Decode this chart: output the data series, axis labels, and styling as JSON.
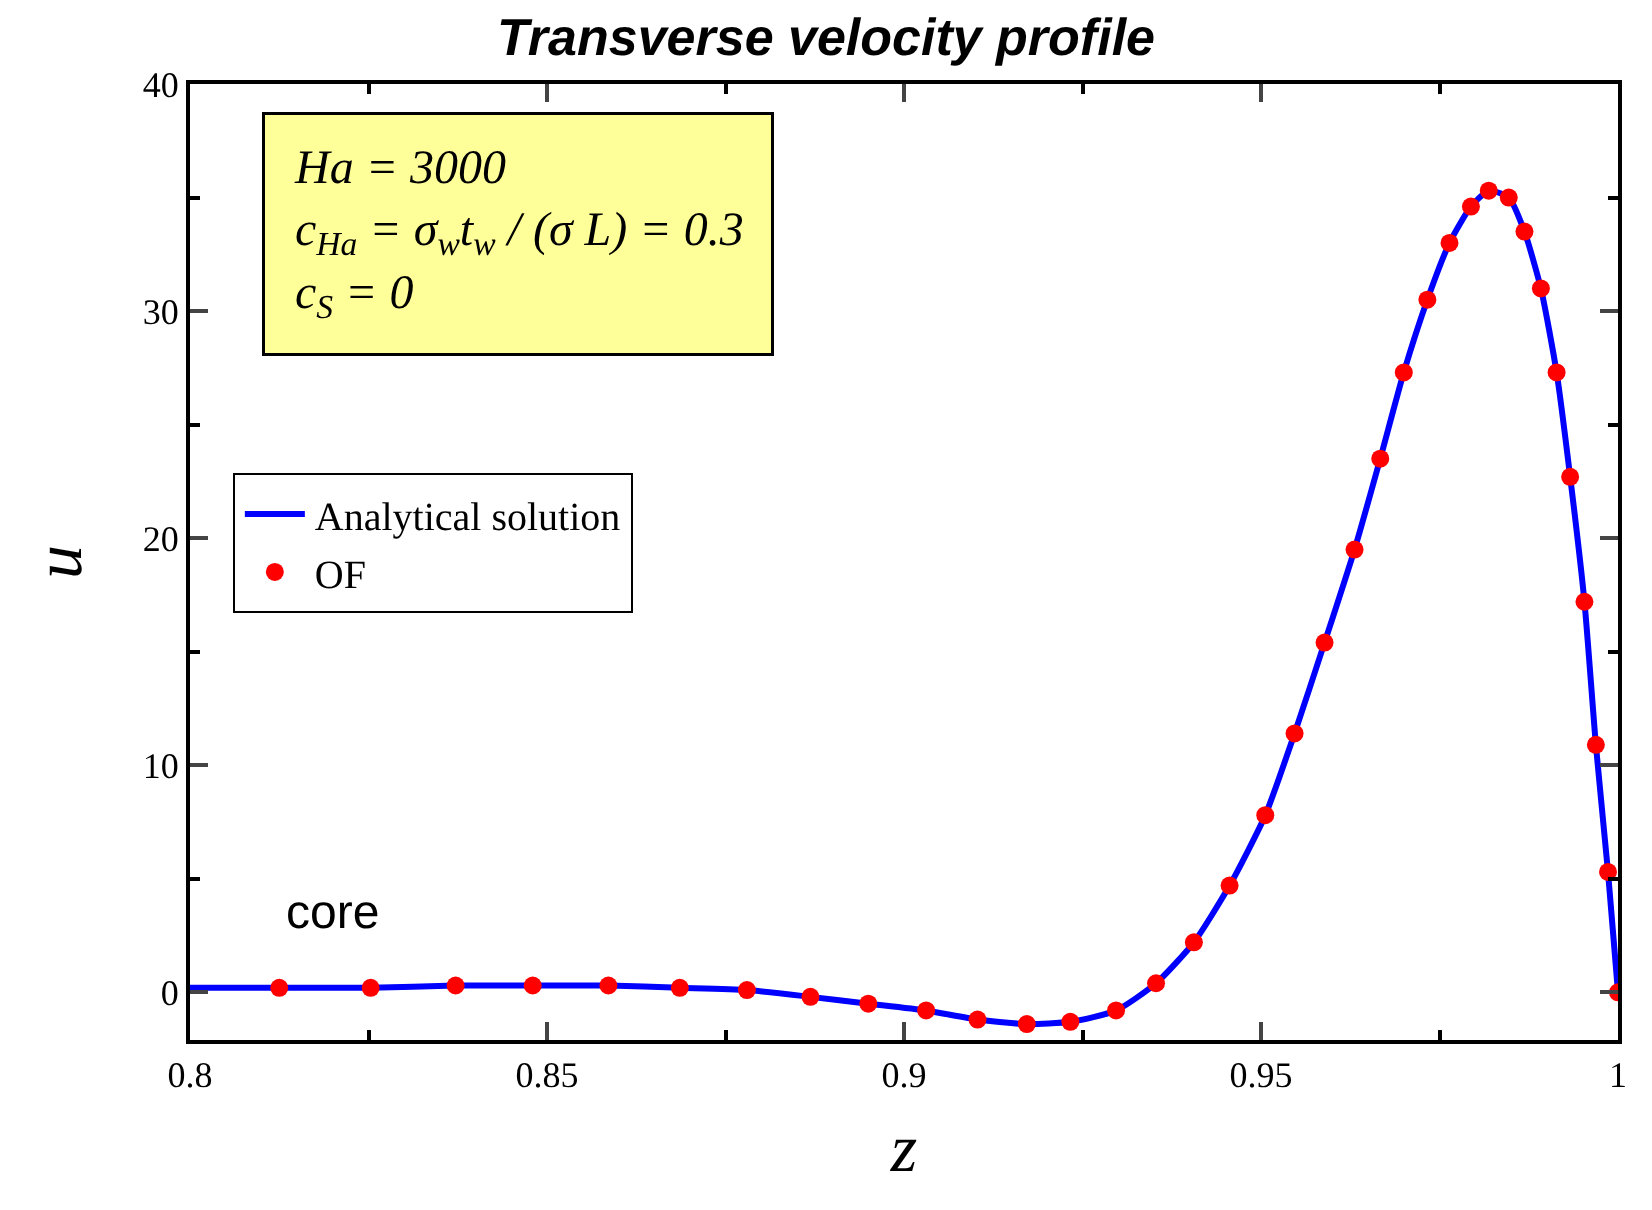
{
  "chart_data": {
    "type": "line",
    "title": "Transverse velocity profile",
    "xlabel": "z",
    "ylabel": "u",
    "annotations": [
      "Ha = 3000",
      "c$_{Ha}$ = σ$_{w}$t$_{w}$ / (σ L) = 0.3",
      "c$_{S}$ = 0",
      "core"
    ],
    "xlim": [
      0.8,
      1
    ],
    "xticks": [
      0.8,
      0.85,
      0.9,
      0.95,
      1
    ],
    "ylim": [
      -2.1,
      40
    ],
    "yticks": [
      0,
      10,
      20,
      30,
      40
    ],
    "grid": false,
    "legend": "left",
    "series": [
      {
        "name": "Analytical solution",
        "color": "#0000ff",
        "marker": "none",
        "line_style": "solid",
        "x": [
          0.8,
          0.8125,
          0.8253,
          0.8372,
          0.848,
          0.8586,
          0.8686,
          0.878,
          0.8869,
          0.895,
          0.9031,
          0.9103,
          0.9172,
          0.9233,
          0.9297,
          0.9353,
          0.9406,
          0.9456,
          0.9506,
          0.9547,
          0.9589,
          0.9631,
          0.9667,
          0.97,
          0.9733,
          0.9764,
          0.9794,
          0.9819,
          0.9847,
          0.9869,
          0.9892,
          0.9914,
          0.9933,
          0.9953,
          0.9969,
          0.9986,
          1.0
        ],
        "values": [
          0.2,
          0.2,
          0.2,
          0.3,
          0.3,
          0.3,
          0.2,
          0.1,
          -0.2,
          -0.5,
          -0.8,
          -1.2,
          -1.4,
          -1.3,
          -0.8,
          0.4,
          2.2,
          4.7,
          7.8,
          11.4,
          15.4,
          19.5,
          23.5,
          27.3,
          30.5,
          33.0,
          34.6,
          35.3,
          35.0,
          33.5,
          31.0,
          27.3,
          22.7,
          17.2,
          10.9,
          5.3,
          0
        ]
      },
      {
        "name": "OF",
        "type": "scatter",
        "color": "#ff0000",
        "marker": "circle",
        "x": [
          0.8125,
          0.8253,
          0.8372,
          0.848,
          0.8586,
          0.8686,
          0.878,
          0.8869,
          0.895,
          0.9031,
          0.9103,
          0.9172,
          0.9233,
          0.9297,
          0.9353,
          0.9406,
          0.9456,
          0.9506,
          0.9547,
          0.9589,
          0.9631,
          0.9667,
          0.97,
          0.9733,
          0.9764,
          0.9794,
          0.9819,
          0.9847,
          0.9869,
          0.9892,
          0.9914,
          0.9933,
          0.9953,
          0.9969,
          0.9986,
          1.0
        ],
        "values": [
          0.2,
          0.2,
          0.3,
          0.3,
          0.3,
          0.2,
          0.1,
          -0.2,
          -0.5,
          -0.8,
          -1.2,
          -1.4,
          -1.3,
          -0.8,
          0.4,
          2.2,
          4.7,
          7.8,
          11.4,
          15.4,
          19.5,
          23.5,
          27.3,
          30.5,
          33.0,
          34.6,
          35.3,
          35.0,
          33.5,
          31.0,
          27.3,
          22.7,
          17.2,
          10.9,
          5.3,
          0
        ]
      }
    ]
  }
}
